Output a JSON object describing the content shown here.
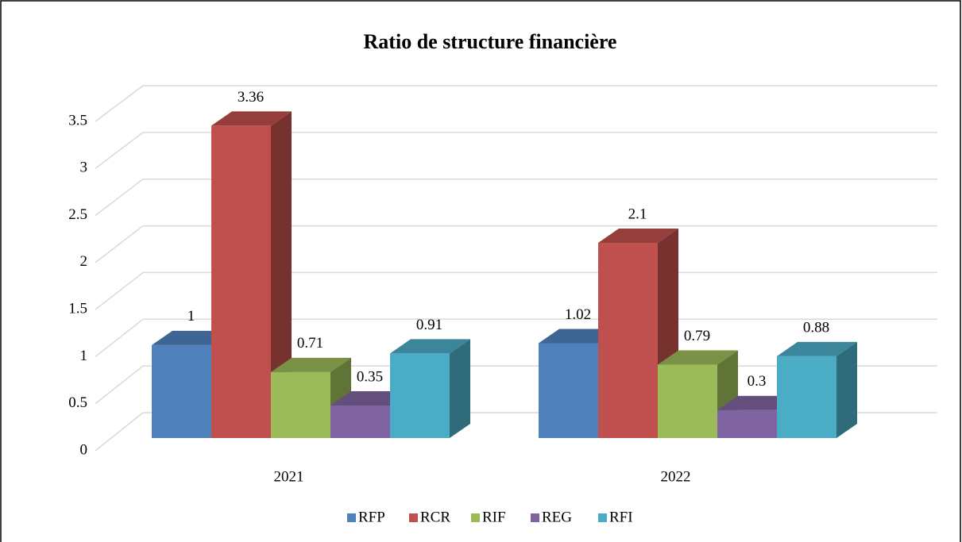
{
  "chart_data": {
    "type": "bar3d",
    "title": "Ratio de structure financière",
    "categories": [
      "2021",
      "2022"
    ],
    "series": [
      {
        "name": "RFP",
        "color": "#4f81bd",
        "values": [
          1,
          1.02
        ]
      },
      {
        "name": "RCR",
        "color": "#c0504d",
        "values": [
          3.36,
          2.1
        ]
      },
      {
        "name": "RIF",
        "color": "#9bbb59",
        "values": [
          0.71,
          0.79
        ]
      },
      {
        "name": "REG",
        "color": "#8064a2",
        "values": [
          0.35,
          0.3
        ]
      },
      {
        "name": "RFI",
        "color": "#4bacc6",
        "values": [
          0.91,
          0.88
        ]
      }
    ],
    "ylim": [
      0,
      3.5
    ],
    "yticks": [
      0,
      0.5,
      1,
      1.5,
      2,
      2.5,
      3,
      3.5
    ],
    "grid": true,
    "legend": "bottom"
  }
}
